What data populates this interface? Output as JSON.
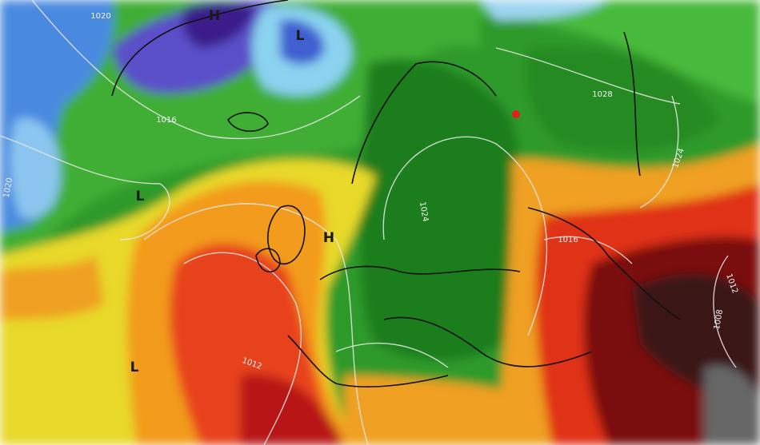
{
  "pressure_centers": [
    {
      "label": "H"
    },
    {
      "label": "L"
    },
    {
      "label": "L"
    },
    {
      "label": "H"
    },
    {
      "label": "L"
    }
  ],
  "isobar_labels": [
    {
      "label": "1020"
    },
    {
      "label": "1016"
    },
    {
      "label": "1028"
    },
    {
      "label": "1024"
    },
    {
      "label": "1020"
    },
    {
      "label": "1024"
    },
    {
      "label": "1016"
    },
    {
      "label": "1012"
    },
    {
      "label": "1008"
    },
    {
      "label": "1012"
    }
  ]
}
